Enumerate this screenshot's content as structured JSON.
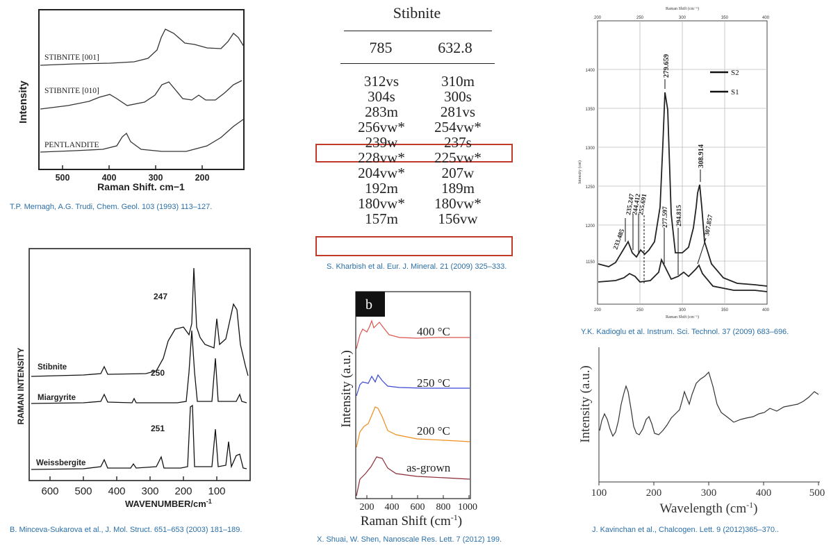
{
  "panels": {
    "a": {
      "caption": "T.P. Mernagh, A.G. Trudi, Chem. Geol. 103 (1993) 113–127.",
      "ylabel": "Intensity",
      "xlabel": "Raman Shift, cm−1",
      "ticks": [
        "500",
        "400",
        "300",
        "200"
      ],
      "labels": [
        "STIBNITE [001]",
        "STIBNITE [010]",
        "PENTLANDITE"
      ]
    },
    "b": {
      "caption": "B. Minceva-Sukarova et al., J. Mol. Struct. 651–653 (2003) 181–189.",
      "ylabel": "RAMAN INTENSITY",
      "xlabel_main": "WAVENUMBER/cm",
      "xlabel_sup": "-1",
      "ticks": [
        "600",
        "500",
        "400",
        "300",
        "200",
        "100"
      ],
      "labels": [
        "Stibnite",
        "Miargyrite",
        "Weissbergite"
      ],
      "peaks": [
        "247",
        "250",
        "251"
      ]
    },
    "table": {
      "caption": "S. Kharbish et al. Eur. J. Mineral. 21 (2009) 325–333.",
      "title": "Stibnite",
      "headers": [
        "785",
        "632.8"
      ],
      "rows": [
        [
          "312vs",
          "310m"
        ],
        [
          "304s",
          "300s"
        ],
        [
          "283m",
          "281vs"
        ],
        [
          "256vw*",
          "254vw*"
        ],
        [
          "239w",
          "237s"
        ],
        [
          "228vw*",
          "225vw*"
        ],
        [
          "204vw*",
          "207w"
        ],
        [
          "192m",
          "189m"
        ],
        [
          "180vw*",
          "180vw*"
        ],
        [
          "157m",
          "156vw"
        ]
      ],
      "highlight_color": "#c0392b"
    },
    "c": {
      "caption": "X. Shuai, W. Shen, Nanoscale Res. Lett. 7 (2012) 199.",
      "badge": "b",
      "ylabel": "Intensity (a.u.)",
      "xlabel": "Raman Shift (cm",
      "xlabel_sup": "-1",
      "xlabel_end": ")",
      "ticks": [
        "200",
        "400",
        "600",
        "800",
        "1000"
      ],
      "series": [
        {
          "name": "400 °C",
          "color": "#d9534f"
        },
        {
          "name": "250 °C",
          "color": "#3b47d6"
        },
        {
          "name": "200 °C",
          "color": "#f08c1e"
        },
        {
          "name": "as-grown",
          "color": "#8b2a35"
        }
      ]
    },
    "d": {
      "caption": "Y.K. Kadioglu et al. Instrum. Sci. Technol. 37 (2009) 683–696.",
      "top_label": "Raman Shift (cm⁻¹)",
      "bottom_label": "Raman Shift (cm⁻¹)",
      "ylabel": "Intensity (cnt)",
      "ticks": [
        "200",
        "250",
        "300",
        "350",
        "400"
      ],
      "yticks": [
        "1400",
        "1350",
        "1300",
        "1250",
        "1200",
        "1150"
      ],
      "legend": [
        "S2",
        "S1"
      ],
      "peaks": [
        "233.485",
        "235.247",
        "244.412",
        "255.691",
        "279.659",
        "277.597",
        "294.815",
        "308.914",
        "307.857"
      ]
    },
    "e": {
      "caption": "J. Kavinchan et al., Chalcogen. Lett. 9 (2012)365–370..",
      "ylabel": "Intensity (a.u.)",
      "xlabel": "Wavelength (cm",
      "xlabel_sup": "-1",
      "xlabel_end": ")",
      "ticks": [
        "100",
        "200",
        "300",
        "400",
        "500"
      ]
    }
  },
  "chart_data": [
    {
      "type": "line",
      "title": "",
      "xlabel": "Raman Shift, cm−1",
      "ylabel": "Intensity",
      "xlim": [
        550,
        130
      ],
      "series": [
        {
          "name": "STIBNITE [001]",
          "peaks_x": [
            290,
            150
          ]
        },
        {
          "name": "STIBNITE [010]",
          "peaks_x": [
            400,
            285,
            215
          ]
        },
        {
          "name": "PENTLANDITE",
          "peaks_x": [
            370
          ]
        }
      ]
    },
    {
      "type": "line",
      "title": "",
      "xlabel": "WAVENUMBER/cm-1",
      "ylabel": "RAMAN INTENSITY",
      "xlim": [
        650,
        80
      ],
      "series": [
        {
          "name": "Stibnite",
          "peaks_x": [
            447,
            300,
            247,
            188,
            147
          ]
        },
        {
          "name": "Miargyrite",
          "peaks_x": [
            447,
            370,
            250,
            188,
            120
          ]
        },
        {
          "name": "Weissbergite",
          "peaks_x": [
            447,
            325,
            251,
            190,
            150,
            115
          ]
        }
      ]
    },
    {
      "type": "table",
      "title": "Stibnite",
      "columns": [
        "785",
        "632.8"
      ]
    },
    {
      "type": "line",
      "title": "",
      "xlabel": "Raman Shift (cm-1)",
      "ylabel": "Intensity (a.u.)",
      "xlim": [
        100,
        1000
      ],
      "series": [
        {
          "name": "400 °C",
          "peaks_x": [
            260
          ]
        },
        {
          "name": "250 °C",
          "peaks_x": [
            270
          ]
        },
        {
          "name": "200 °C",
          "peaks_x": [
            290
          ]
        },
        {
          "name": "as-grown",
          "peaks_x": [
            280
          ]
        }
      ]
    },
    {
      "type": "line",
      "title": "",
      "xlabel": "Raman Shift (cm-1)",
      "ylabel": "Intensity (cnt)",
      "xlim": [
        200,
        400
      ],
      "ylim": [
        1100,
        1450
      ],
      "series": [
        {
          "name": "S2",
          "peaks_x": [
            235.247,
            244.412,
            279.659,
            308.914
          ]
        },
        {
          "name": "S1",
          "peaks_x": [
            233.485,
            255.691,
            277.597,
            294.815,
            307.857
          ]
        }
      ]
    },
    {
      "type": "line",
      "title": "",
      "xlabel": "Wavelength (cm-1)",
      "ylabel": "Intensity (a.u.)",
      "xlim": [
        100,
        500
      ],
      "series": [
        {
          "name": "",
          "x": [
            100,
            110,
            125,
            135,
            150,
            165,
            180,
            190,
            200,
            215,
            230,
            250,
            258,
            265,
            275,
            290,
            300,
            310,
            325,
            350,
            375,
            400,
            425,
            450,
            475,
            490,
            500
          ],
          "y": [
            0.35,
            0.45,
            0.33,
            0.42,
            0.78,
            0.38,
            0.33,
            0.4,
            0.3,
            0.36,
            0.4,
            0.7,
            0.62,
            0.72,
            0.76,
            0.88,
            0.92,
            0.72,
            0.56,
            0.38,
            0.44,
            0.5,
            0.5,
            0.55,
            0.63,
            0.72,
            0.68
          ]
        }
      ]
    }
  ]
}
